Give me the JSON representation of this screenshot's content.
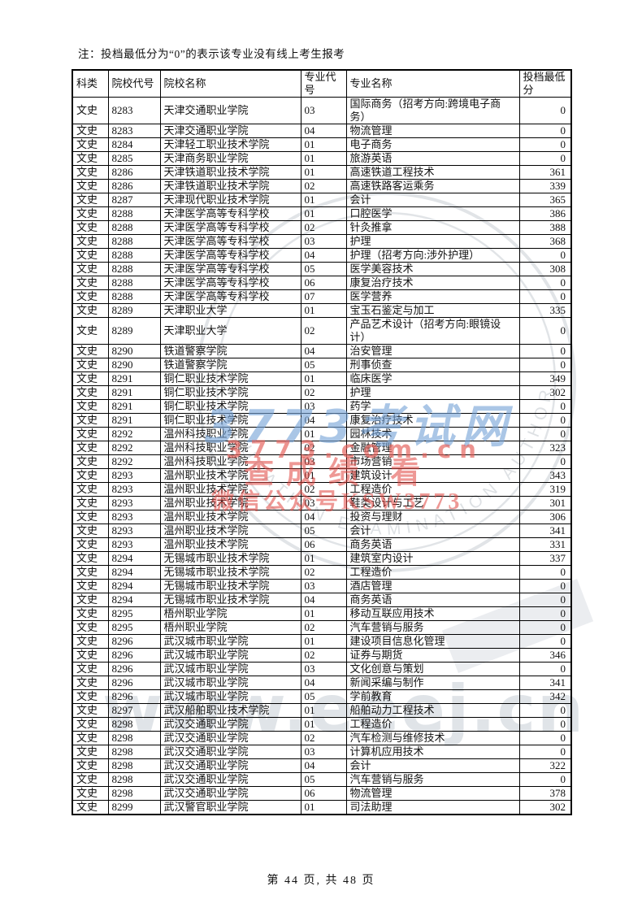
{
  "page": {
    "note": "注：投档最低分为“0”的表示该专业没有线上考生报考",
    "footer": "第 44 页, 共 48 页"
  },
  "table": {
    "headers": [
      "科类",
      "院校代号",
      "院校名称",
      "专业代号",
      "专业名称",
      "投档最低分"
    ],
    "rows": [
      [
        "文史",
        "8283",
        "天津交通职业学院",
        "03",
        "国际商务（招考方向:跨境电子商务）",
        "0"
      ],
      [
        "文史",
        "8283",
        "天津交通职业学院",
        "04",
        "物流管理",
        "0"
      ],
      [
        "文史",
        "8284",
        "天津轻工职业技术学院",
        "01",
        "电子商务",
        "0"
      ],
      [
        "文史",
        "8285",
        "天津商务职业学院",
        "01",
        "旅游英语",
        "0"
      ],
      [
        "文史",
        "8286",
        "天津铁道职业技术学院",
        "01",
        "高速铁道工程技术",
        "361"
      ],
      [
        "文史",
        "8286",
        "天津铁道职业技术学院",
        "02",
        "高速铁路客运乘务",
        "339"
      ],
      [
        "文史",
        "8287",
        "天津现代职业技术学院",
        "01",
        "会计",
        "365"
      ],
      [
        "文史",
        "8288",
        "天津医学高等专科学校",
        "01",
        "口腔医学",
        "386"
      ],
      [
        "文史",
        "8288",
        "天津医学高等专科学校",
        "02",
        "针灸推拿",
        "388"
      ],
      [
        "文史",
        "8288",
        "天津医学高等专科学校",
        "03",
        "护理",
        "368"
      ],
      [
        "文史",
        "8288",
        "天津医学高等专科学校",
        "04",
        "护理（招考方向:涉外护理）",
        "0"
      ],
      [
        "文史",
        "8288",
        "天津医学高等专科学校",
        "05",
        "医学美容技术",
        "308"
      ],
      [
        "文史",
        "8288",
        "天津医学高等专科学校",
        "06",
        "康复治疗技术",
        "0"
      ],
      [
        "文史",
        "8288",
        "天津医学高等专科学校",
        "07",
        "医学营养",
        "0"
      ],
      [
        "文史",
        "8289",
        "天津职业大学",
        "01",
        "宝玉石鉴定与加工",
        "335"
      ],
      [
        "文史",
        "8289",
        "天津职业大学",
        "02",
        "产品艺术设计（招考方向:眼镜设计）",
        "0"
      ],
      [
        "文史",
        "8290",
        "铁道警察学院",
        "04",
        "治安管理",
        "0"
      ],
      [
        "文史",
        "8290",
        "铁道警察学院",
        "05",
        "刑事侦查",
        "0"
      ],
      [
        "文史",
        "8291",
        "铜仁职业技术学院",
        "01",
        "临床医学",
        "349"
      ],
      [
        "文史",
        "8291",
        "铜仁职业技术学院",
        "02",
        "护理",
        "302"
      ],
      [
        "文史",
        "8291",
        "铜仁职业技术学院",
        "03",
        "药学",
        "0"
      ],
      [
        "文史",
        "8291",
        "铜仁职业技术学院",
        "04",
        "康复治疗技术",
        "0"
      ],
      [
        "文史",
        "8292",
        "温州科技职业学院",
        "01",
        "园林技术",
        "0"
      ],
      [
        "文史",
        "8292",
        "温州科技职业学院",
        "02",
        "金融管理",
        "323"
      ],
      [
        "文史",
        "8292",
        "温州科技职业学院",
        "03",
        "市场营销",
        "0"
      ],
      [
        "文史",
        "8293",
        "温州职业技术学院",
        "01",
        "建筑设计",
        "343"
      ],
      [
        "文史",
        "8293",
        "温州职业技术学院",
        "02",
        "工程造价",
        "319"
      ],
      [
        "文史",
        "8293",
        "温州职业技术学院",
        "03",
        "鞋类设计与工艺",
        "301"
      ],
      [
        "文史",
        "8293",
        "温州职业技术学院",
        "04",
        "投资与理财",
        "306"
      ],
      [
        "文史",
        "8293",
        "温州职业技术学院",
        "05",
        "会计",
        "341"
      ],
      [
        "文史",
        "8293",
        "温州职业技术学院",
        "06",
        "商务英语",
        "331"
      ],
      [
        "文史",
        "8294",
        "无锡城市职业技术学院",
        "01",
        "建筑室内设计",
        "337"
      ],
      [
        "文史",
        "8294",
        "无锡城市职业技术学院",
        "02",
        "工程造价",
        "0"
      ],
      [
        "文史",
        "8294",
        "无锡城市职业技术学院",
        "03",
        "酒店管理",
        "0"
      ],
      [
        "文史",
        "8294",
        "无锡城市职业技术学院",
        "04",
        "商务英语",
        "0"
      ],
      [
        "文史",
        "8295",
        "梧州职业学院",
        "01",
        "移动互联应用技术",
        "0"
      ],
      [
        "文史",
        "8295",
        "梧州职业学院",
        "02",
        "汽车营销与服务",
        "0"
      ],
      [
        "文史",
        "8296",
        "武汉城市职业学院",
        "01",
        "建设项目信息化管理",
        "0"
      ],
      [
        "文史",
        "8296",
        "武汉城市职业学院",
        "02",
        "证券与期货",
        "346"
      ],
      [
        "文史",
        "8296",
        "武汉城市职业学院",
        "03",
        "文化创意与策划",
        "0"
      ],
      [
        "文史",
        "8296",
        "武汉城市职业学院",
        "04",
        "新闻采编与制作",
        "341"
      ],
      [
        "文史",
        "8296",
        "武汉城市职业学院",
        "05",
        "学前教育",
        "342"
      ],
      [
        "文史",
        "8297",
        "武汉船舶职业技术学院",
        "01",
        "船舶动力工程技术",
        "0"
      ],
      [
        "文史",
        "8298",
        "武汉交通职业学院",
        "01",
        "工程造价",
        "0"
      ],
      [
        "文史",
        "8298",
        "武汉交通职业学院",
        "02",
        "汽车检测与维修技术",
        "0"
      ],
      [
        "文史",
        "8298",
        "武汉交通职业学院",
        "03",
        "计算机应用技术",
        "0"
      ],
      [
        "文史",
        "8298",
        "武汉交通职业学院",
        "04",
        "会计",
        "322"
      ],
      [
        "文史",
        "8298",
        "武汉交通职业学院",
        "05",
        "汽车营销与服务",
        "0"
      ],
      [
        "文史",
        "8298",
        "武汉交通职业学院",
        "06",
        "物流管理",
        "378"
      ],
      [
        "文史",
        "8299",
        "武汉警官职业学院",
        "01",
        "司法助理",
        "302"
      ]
    ]
  },
  "watermarks": {
    "brand_blue": "3773考试网",
    "brand_red_url": "3773.com.cn",
    "promo_line1": "查成绩 看",
    "promo_line2": "微信公众号KSW3773",
    "gray_url": "www.eeej.cn",
    "seal_arc_text": "EDUCATION EXAMINATION AUTHORITY"
  },
  "colors": {
    "text": "#111111",
    "border": "#000000",
    "watermark_blue": "#76a3d6",
    "watermark_red": "#e0443e",
    "watermark_gray": "#b6bfc9",
    "seal_gray": "#b3bac2"
  }
}
